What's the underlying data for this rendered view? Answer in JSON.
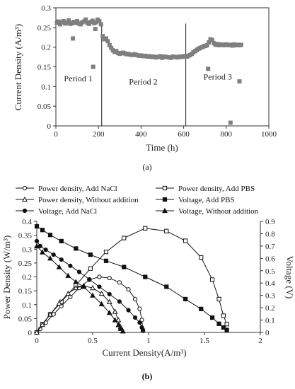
{
  "chart_data": [
    {
      "type": "scatter",
      "panel_label": "(a)",
      "ylabel": "Current Density (A/m³)",
      "xlabel": "Time (h)",
      "xlim": [
        0,
        1000
      ],
      "ylim": [
        0,
        0.3
      ],
      "xticks": [
        "0",
        "200",
        "400",
        "600",
        "800",
        "1000"
      ],
      "yticks": [
        "0",
        "0.05",
        "0.1",
        "0.15",
        "0.2",
        "0.25",
        "0.3"
      ],
      "x_tick_values": [
        0,
        200,
        400,
        600,
        800,
        1000
      ],
      "y_tick_values": [
        0,
        0.05,
        0.1,
        0.15,
        0.2,
        0.25,
        0.3
      ],
      "period_lines": [
        215,
        610
      ],
      "annotations": [
        {
          "text": "Period 1",
          "x": 105,
          "y": 0.113
        },
        {
          "text": "Period 2",
          "x": 410,
          "y": 0.105
        },
        {
          "text": "Period 3",
          "x": 760,
          "y": 0.118
        }
      ],
      "marker_color": "#7f7f7f",
      "series": [
        {
          "x": [
            5,
            12,
            20,
            28,
            36,
            44,
            52,
            60,
            68,
            76,
            84,
            92,
            100,
            108,
            116,
            124,
            132,
            140,
            148,
            156,
            164,
            172,
            180,
            188,
            196,
            204,
            212,
            220,
            228,
            236,
            244,
            252,
            260,
            268,
            276,
            284,
            292,
            300,
            308,
            316,
            324,
            332,
            340,
            350,
            360,
            370,
            380,
            390,
            400,
            410,
            420,
            430,
            440,
            450,
            460,
            470,
            480,
            490,
            500,
            510,
            520,
            530,
            540,
            550,
            560,
            570,
            580,
            590,
            600,
            608,
            615,
            622,
            630,
            638,
            646,
            654,
            662,
            670,
            678,
            686,
            694,
            702,
            710,
            718,
            726,
            734,
            742,
            750,
            758,
            766,
            774,
            782,
            790,
            798,
            806,
            814,
            822,
            830,
            838,
            846,
            854,
            862,
            870,
            80,
            175,
            185,
            715,
            820,
            862
          ],
          "y": [
            0.262,
            0.265,
            0.258,
            0.263,
            0.266,
            0.26,
            0.262,
            0.268,
            0.259,
            0.261,
            0.264,
            0.262,
            0.266,
            0.26,
            0.258,
            0.263,
            0.265,
            0.27,
            0.262,
            0.259,
            0.264,
            0.267,
            0.261,
            0.263,
            0.27,
            0.266,
            0.258,
            0.228,
            0.22,
            0.222,
            0.215,
            0.205,
            0.198,
            0.192,
            0.188,
            0.19,
            0.185,
            0.183,
            0.185,
            0.186,
            0.184,
            0.182,
            0.183,
            0.181,
            0.18,
            0.182,
            0.18,
            0.178,
            0.179,
            0.177,
            0.178,
            0.176,
            0.177,
            0.175,
            0.176,
            0.174,
            0.175,
            0.177,
            0.173,
            0.176,
            0.175,
            0.174,
            0.173,
            0.176,
            0.175,
            0.174,
            0.176,
            0.175,
            0.177,
            0.176,
            0.176,
            0.178,
            0.18,
            0.183,
            0.187,
            0.19,
            0.193,
            0.196,
            0.198,
            0.2,
            0.202,
            0.203,
            0.205,
            0.212,
            0.22,
            0.218,
            0.21,
            0.206,
            0.208,
            0.205,
            0.207,
            0.206,
            0.205,
            0.207,
            0.206,
            0.205,
            0.206,
            0.204,
            0.207,
            0.205,
            0.206,
            0.205,
            0.206,
            0.222,
            0.15,
            0.246,
            0.145,
            0.008,
            0.113
          ]
        }
      ]
    },
    {
      "type": "line",
      "panel_label": "(b)",
      "xlabel": "Current Density(A/m³)",
      "ylabel": "Power Density (W/m³)",
      "y2label": "Voltage (V)",
      "xlim": [
        0,
        2
      ],
      "ylim": [
        0,
        0.4
      ],
      "y2lim": [
        0,
        0.9
      ],
      "xticks": [
        "0",
        "0.5",
        "1",
        "1.5",
        "2"
      ],
      "x_tick_values": [
        0,
        0.5,
        1,
        1.5,
        2
      ],
      "yticks": [
        "0",
        "0.05",
        "0.1",
        "0.15",
        "0.2",
        "0.25",
        "0.3",
        "0.35",
        "0.4"
      ],
      "y_tick_values": [
        0,
        0.05,
        0.1,
        0.15,
        0.2,
        0.25,
        0.3,
        0.35,
        0.4
      ],
      "y2ticks": [
        "0",
        "0.1",
        "0.2",
        "0.3",
        "0.4",
        "0.5",
        "0.6",
        "0.7",
        "0.8",
        "0.9"
      ],
      "y2_tick_values": [
        0,
        0.1,
        0.2,
        0.3,
        0.4,
        0.5,
        0.6,
        0.7,
        0.8,
        0.9
      ],
      "legend_placement": "top",
      "series": [
        {
          "name": "Power density, Add NaCl",
          "marker": "circle-open",
          "axis": "left",
          "x": [
            0,
            0.03,
            0.08,
            0.15,
            0.22,
            0.3,
            0.38,
            0.47,
            0.56,
            0.65,
            0.74,
            0.82,
            0.88,
            0.92,
            0.94,
            0.95
          ],
          "y": [
            0,
            0.012,
            0.035,
            0.065,
            0.095,
            0.128,
            0.16,
            0.19,
            0.2,
            0.196,
            0.18,
            0.155,
            0.12,
            0.085,
            0.045,
            0.005
          ]
        },
        {
          "name": "Power density, Add PBS",
          "marker": "square-open",
          "axis": "left",
          "x": [
            0,
            0.05,
            0.12,
            0.22,
            0.35,
            0.48,
            0.62,
            0.78,
            0.97,
            1.16,
            1.33,
            1.47,
            1.57,
            1.63,
            1.67,
            1.7
          ],
          "y": [
            0,
            0.03,
            0.065,
            0.11,
            0.17,
            0.23,
            0.29,
            0.34,
            0.375,
            0.365,
            0.33,
            0.27,
            0.19,
            0.12,
            0.06,
            0.03
          ]
        },
        {
          "name": "Power density, Without addition",
          "marker": "triangle-open",
          "axis": "left",
          "x": [
            0,
            0.05,
            0.12,
            0.2,
            0.28,
            0.35,
            0.42,
            0.5,
            0.58,
            0.65,
            0.7,
            0.73,
            0.75,
            0.77
          ],
          "y": [
            0,
            0.028,
            0.065,
            0.105,
            0.14,
            0.16,
            0.168,
            0.16,
            0.14,
            0.11,
            0.075,
            0.045,
            0.02,
            0.005
          ]
        },
        {
          "name": "Voltage, Add PBS",
          "marker": "square-filled",
          "axis": "right",
          "x": [
            0,
            0.05,
            0.12,
            0.22,
            0.35,
            0.48,
            0.62,
            0.78,
            0.97,
            1.16,
            1.33,
            1.47,
            1.57,
            1.63,
            1.67,
            1.7
          ],
          "y": [
            0.86,
            0.83,
            0.79,
            0.74,
            0.68,
            0.63,
            0.58,
            0.53,
            0.45,
            0.37,
            0.27,
            0.19,
            0.12,
            0.07,
            0.04,
            0.02
          ]
        },
        {
          "name": "Voltage, Add NaCl",
          "marker": "circle-filled",
          "axis": "right",
          "x": [
            0,
            0.03,
            0.08,
            0.15,
            0.22,
            0.3,
            0.38,
            0.47,
            0.56,
            0.65,
            0.74,
            0.82,
            0.88,
            0.92,
            0.94,
            0.95
          ],
          "y": [
            0.74,
            0.7,
            0.67,
            0.63,
            0.59,
            0.54,
            0.49,
            0.43,
            0.37,
            0.31,
            0.25,
            0.18,
            0.12,
            0.08,
            0.04,
            0.02
          ]
        },
        {
          "name": "Voltage, Without addition",
          "marker": "triangle-filled",
          "axis": "right",
          "x": [
            0,
            0.05,
            0.12,
            0.2,
            0.28,
            0.35,
            0.42,
            0.5,
            0.58,
            0.65,
            0.7,
            0.73,
            0.75,
            0.77
          ],
          "y": [
            0.7,
            0.65,
            0.6,
            0.53,
            0.46,
            0.41,
            0.37,
            0.3,
            0.23,
            0.16,
            0.1,
            0.06,
            0.03,
            0.01
          ]
        }
      ]
    }
  ]
}
